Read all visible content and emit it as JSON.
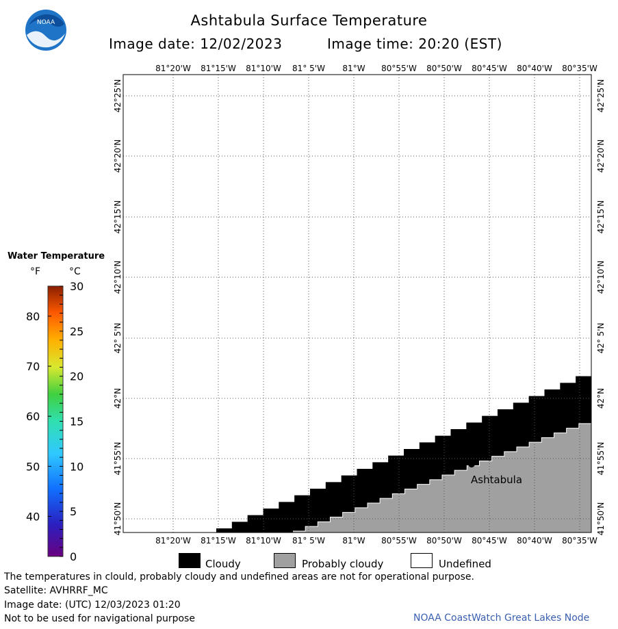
{
  "header": {
    "title": "Ashtabula Surface Temperature",
    "image_date_label": "Image date: 12/02/2023",
    "image_time_label": "Image time: 20:20 (EST)",
    "logo_text": "NOAA"
  },
  "map": {
    "lon_labels_top": [
      "81°20'W",
      "81°15'W",
      "81°10'W",
      "81° 5'W",
      "81°W",
      "80°55'W",
      "80°50'W",
      "80°45'W",
      "80°40'W",
      "80°35'W"
    ],
    "lon_labels_bottom": [
      "81°20'W",
      "81°15'W",
      "81°10'W",
      "81° 5'W",
      "81°W",
      "80°55'W",
      "80°50'W",
      "80°45'W",
      "80°40'W",
      "80°35'W"
    ],
    "lat_labels": [
      "42°25'N",
      "42°20'N",
      "42°15'N",
      "42°10'N",
      "42° 5'N",
      "42°N",
      "41°55'N",
      "41°50'N"
    ],
    "city_label": "Ashtabula",
    "colors": {
      "cloudy": "#000000",
      "probably_cloudy": "#a0a0a0",
      "undefined": "#ffffff",
      "grid": "#555555"
    }
  },
  "legend": {
    "title": "Water Temperature",
    "unit_f": "°F",
    "unit_c": "°C",
    "f_ticks": [
      "80",
      "70",
      "60",
      "50",
      "40"
    ],
    "c_ticks": [
      "30",
      "25",
      "20",
      "15",
      "10",
      "5",
      "0"
    ]
  },
  "key": {
    "cloudy": "Cloudy",
    "probably_cloudy": "Probably cloudy",
    "undefined": "Undefined"
  },
  "footer": {
    "note": "The temperatures in clould, probably cloudy and undefined areas are not for operational purpose.",
    "satellite": "Satellite: AVHRRF_MC",
    "utc_date": "Image date: (UTC) 12/03/2023  01:20",
    "nav_warning": "Not to be used for navigational purpose",
    "credit": "NOAA CoastWatch Great Lakes Node"
  }
}
